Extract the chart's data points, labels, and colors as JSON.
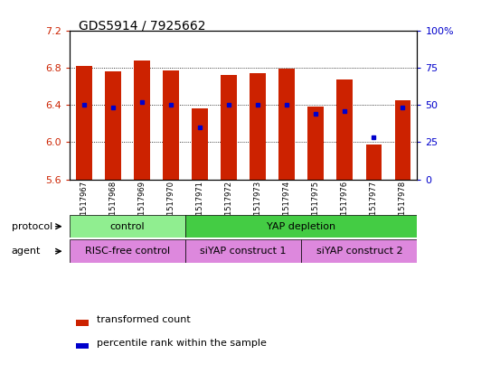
{
  "title": "GDS5914 / 7925662",
  "samples": [
    "GSM1517967",
    "GSM1517968",
    "GSM1517969",
    "GSM1517970",
    "GSM1517971",
    "GSM1517972",
    "GSM1517973",
    "GSM1517974",
    "GSM1517975",
    "GSM1517976",
    "GSM1517977",
    "GSM1517978"
  ],
  "transformed_counts": [
    6.82,
    6.76,
    6.88,
    6.77,
    6.36,
    6.72,
    6.74,
    6.79,
    6.38,
    6.67,
    5.97,
    6.45
  ],
  "percentile_ranks": [
    50,
    48,
    52,
    50,
    35,
    50,
    50,
    50,
    44,
    46,
    28,
    48
  ],
  "ylim": [
    5.6,
    7.2
  ],
  "yticks": [
    5.6,
    6.0,
    6.4,
    6.8,
    7.2
  ],
  "right_ylim": [
    0,
    100
  ],
  "right_yticks": [
    0,
    25,
    50,
    75,
    100
  ],
  "right_yticklabels": [
    "0",
    "25",
    "50",
    "75",
    "100%"
  ],
  "bar_color": "#cc2200",
  "dot_color": "#0000cc",
  "bar_bottom": 5.6,
  "protocol_label": "protocol",
  "agent_label": "agent",
  "legend_bar_label": "transformed count",
  "legend_dot_label": "percentile rank within the sample",
  "tick_color_left": "#cc2200",
  "tick_color_right": "#0000cc",
  "protocol_control_color": "#90ee90",
  "protocol_yap_color": "#44cc44",
  "agent_color": "#dd88dd",
  "ytick_fontsize": 8,
  "xtick_fontsize": 6,
  "label_fontsize": 8,
  "title_fontsize": 10
}
